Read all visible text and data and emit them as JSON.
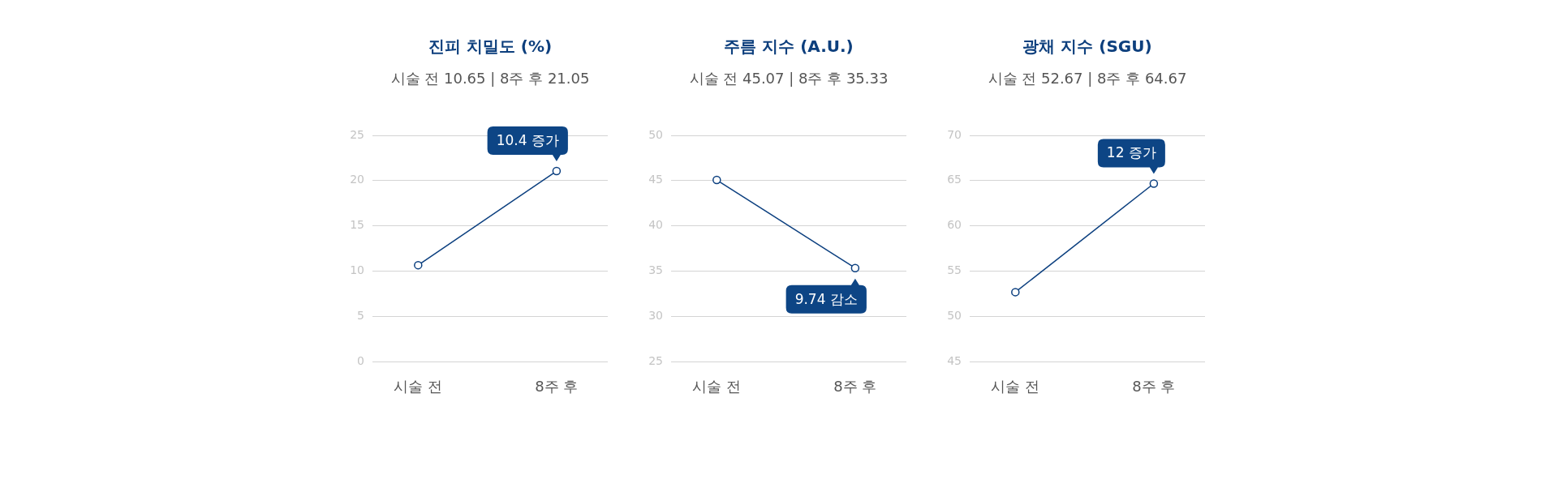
{
  "chart_data": [
    {
      "type": "line",
      "title": "진피 치밀도 (%)",
      "subtitle": "시술 전 10.65 | 8주 후 21.05",
      "categories": [
        "시술 전",
        "8주 후"
      ],
      "values": [
        10.65,
        21.05
      ],
      "color": "#0b3f7f",
      "ylim": [
        0,
        25
      ],
      "yticks": [
        0,
        5,
        10,
        15,
        20,
        25
      ],
      "grid": "y",
      "marker": "circle",
      "annotations": [
        {
          "text": "10.4 증가",
          "x": "8주 후",
          "y": 21.05
        }
      ]
    },
    {
      "type": "line",
      "title": "주름 지수 (A.U.)",
      "subtitle": "시술 전 45.07 | 8주 후 35.33",
      "categories": [
        "시술 전",
        "8주 후"
      ],
      "values": [
        45.07,
        35.33
      ],
      "color": "#0b3f7f",
      "ylim": [
        25,
        50
      ],
      "yticks": [
        25,
        30,
        35,
        40,
        45,
        50
      ],
      "grid": "y",
      "marker": "circle",
      "annotations": [
        {
          "text": "9.74 감소",
          "x": "8주 후",
          "y": 35.33
        }
      ]
    },
    {
      "type": "line",
      "title": "광채 지수 (SGU)",
      "subtitle": "시술 전 52.67 | 8주 후 64.67",
      "categories": [
        "시술 전",
        "8주 후"
      ],
      "values": [
        52.67,
        64.67
      ],
      "color": "#0b3f7f",
      "ylim": [
        45,
        70
      ],
      "yticks": [
        45,
        50,
        55,
        60,
        65,
        70
      ],
      "grid": "y",
      "marker": "circle",
      "annotations": [
        {
          "text": "12 증가",
          "x": "8주 후",
          "y": 64.67
        }
      ]
    }
  ]
}
